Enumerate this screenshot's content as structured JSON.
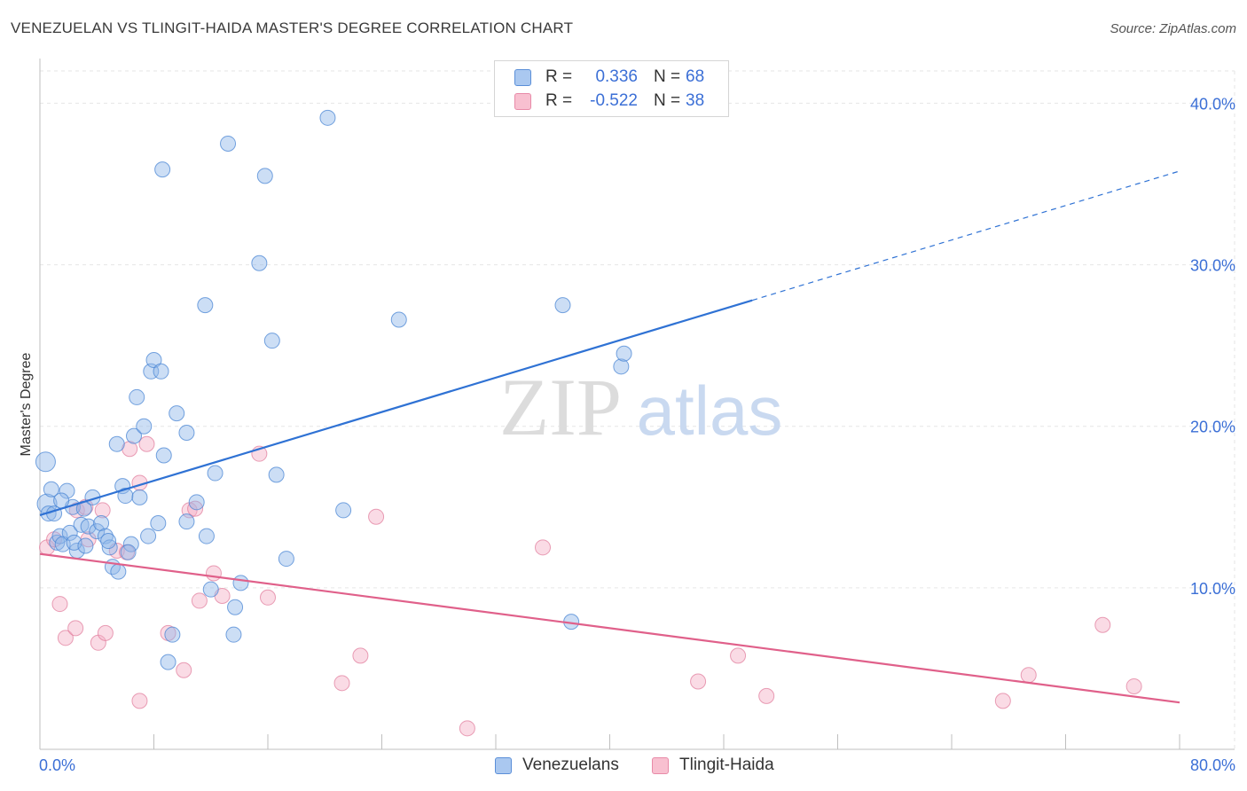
{
  "header": {
    "title": "VENEZUELAN VS TLINGIT-HAIDA MASTER'S DEGREE CORRELATION CHART",
    "source": "Source: ZipAtlas.com"
  },
  "watermark": {
    "zip": "ZIP",
    "atlas": "atlas"
  },
  "legend": {
    "rows": [
      {
        "r_label": "R =",
        "r_value": "0.336",
        "n_label": "N =",
        "n_value": "68",
        "color": "#aac8f0",
        "border": "#5b8fd8"
      },
      {
        "r_label": "R =",
        "r_value": "-0.522",
        "n_label": "N =",
        "n_value": "38",
        "color": "#f8c0d0",
        "border": "#e88aa8"
      }
    ]
  },
  "bottom_legend": [
    {
      "label": "Venezuelans",
      "color": "#aac8f0",
      "border": "#5b8fd8"
    },
    {
      "label": "Tlingit-Haida",
      "color": "#f8c0d0",
      "border": "#e88aa8"
    }
  ],
  "chart_data": {
    "type": "scatter",
    "title": "VENEZUELAN VS TLINGIT-HAIDA MASTER'S DEGREE CORRELATION CHART",
    "xlabel": "",
    "ylabel": "Master's Degree",
    "xlim": [
      0,
      80
    ],
    "ylim": [
      0,
      42
    ],
    "x_tick_labels": [
      "0.0%",
      "80.0%"
    ],
    "y_ticks": [
      10,
      20,
      30,
      40
    ],
    "y_tick_labels": [
      "10.0%",
      "20.0%",
      "30.0%",
      "40.0%"
    ],
    "grid": true,
    "series": [
      {
        "name": "Venezuelans",
        "color": "#8fb5e8",
        "stroke": "#4a86d4",
        "line_color": "#2f72d4",
        "trend": {
          "x0": 0,
          "y0": 14.5,
          "x1": 50,
          "y1": 27.8,
          "dash_x1": 80,
          "dash_y1": 35.8
        },
        "points": [
          [
            0.4,
            17.8
          ],
          [
            0.5,
            15.2
          ],
          [
            0.6,
            14.6
          ],
          [
            0.8,
            16.1
          ],
          [
            1.0,
            14.6
          ],
          [
            1.2,
            12.8
          ],
          [
            1.4,
            13.2
          ],
          [
            1.6,
            12.7
          ],
          [
            1.9,
            16.0
          ],
          [
            2.1,
            13.4
          ],
          [
            2.3,
            15.0
          ],
          [
            2.6,
            12.3
          ],
          [
            2.9,
            13.9
          ],
          [
            3.1,
            14.9
          ],
          [
            3.4,
            13.8
          ],
          [
            3.7,
            15.6
          ],
          [
            4.0,
            13.5
          ],
          [
            4.3,
            14.0
          ],
          [
            4.6,
            13.2
          ],
          [
            4.9,
            12.5
          ],
          [
            5.1,
            11.3
          ],
          [
            5.5,
            11.0
          ],
          [
            5.4,
            18.9
          ],
          [
            5.8,
            16.3
          ],
          [
            6.0,
            15.7
          ],
          [
            6.4,
            12.7
          ],
          [
            6.6,
            19.4
          ],
          [
            6.8,
            21.8
          ],
          [
            7.0,
            15.6
          ],
          [
            7.3,
            20.0
          ],
          [
            7.6,
            13.2
          ],
          [
            7.8,
            23.4
          ],
          [
            8.0,
            24.1
          ],
          [
            8.3,
            14.0
          ],
          [
            8.5,
            23.4
          ],
          [
            8.7,
            18.2
          ],
          [
            8.6,
            35.9
          ],
          [
            9.0,
            5.4
          ],
          [
            9.3,
            7.1
          ],
          [
            9.6,
            20.8
          ],
          [
            10.3,
            19.6
          ],
          [
            10.3,
            14.1
          ],
          [
            11.0,
            15.3
          ],
          [
            11.6,
            27.5
          ],
          [
            11.7,
            13.2
          ],
          [
            12.0,
            9.9
          ],
          [
            12.3,
            17.1
          ],
          [
            13.2,
            37.5
          ],
          [
            13.6,
            7.1
          ],
          [
            13.7,
            8.8
          ],
          [
            14.1,
            10.3
          ],
          [
            15.4,
            30.1
          ],
          [
            15.8,
            35.5
          ],
          [
            16.3,
            25.3
          ],
          [
            16.6,
            17.0
          ],
          [
            17.3,
            11.8
          ],
          [
            20.2,
            39.1
          ],
          [
            21.3,
            14.8
          ],
          [
            25.2,
            26.6
          ],
          [
            36.7,
            27.5
          ],
          [
            37.3,
            7.9
          ],
          [
            40.8,
            23.7
          ],
          [
            41.0,
            24.5
          ],
          [
            1.5,
            15.4
          ],
          [
            2.4,
            12.8
          ],
          [
            4.8,
            12.9
          ],
          [
            6.2,
            12.2
          ],
          [
            3.2,
            12.6
          ]
        ]
      },
      {
        "name": "Tlingit-Haida",
        "color": "#f4b0c6",
        "stroke": "#e07898",
        "line_color": "#e0608a",
        "trend": {
          "x0": 0,
          "y0": 12.1,
          "x1": 80,
          "y1": 2.9
        },
        "points": [
          [
            0.5,
            12.5
          ],
          [
            1.0,
            13.0
          ],
          [
            1.4,
            9.0
          ],
          [
            1.8,
            6.9
          ],
          [
            2.5,
            7.5
          ],
          [
            2.6,
            14.8
          ],
          [
            3.2,
            15.0
          ],
          [
            3.4,
            13.0
          ],
          [
            4.1,
            6.6
          ],
          [
            4.4,
            14.8
          ],
          [
            4.6,
            7.2
          ],
          [
            5.4,
            12.3
          ],
          [
            6.1,
            12.2
          ],
          [
            6.3,
            18.6
          ],
          [
            7.0,
            3.0
          ],
          [
            7.0,
            16.5
          ],
          [
            7.5,
            18.9
          ],
          [
            9.0,
            7.2
          ],
          [
            10.1,
            4.9
          ],
          [
            10.5,
            14.8
          ],
          [
            10.9,
            14.9
          ],
          [
            11.2,
            9.2
          ],
          [
            12.2,
            10.9
          ],
          [
            12.8,
            9.5
          ],
          [
            15.4,
            18.3
          ],
          [
            16.0,
            9.4
          ],
          [
            21.2,
            4.1
          ],
          [
            22.5,
            5.8
          ],
          [
            23.6,
            14.4
          ],
          [
            30.0,
            1.3
          ],
          [
            35.3,
            12.5
          ],
          [
            46.2,
            4.2
          ],
          [
            49.0,
            5.8
          ],
          [
            51.0,
            3.3
          ],
          [
            67.6,
            3.0
          ],
          [
            69.4,
            4.6
          ],
          [
            74.6,
            7.7
          ],
          [
            76.8,
            3.9
          ]
        ]
      }
    ]
  }
}
